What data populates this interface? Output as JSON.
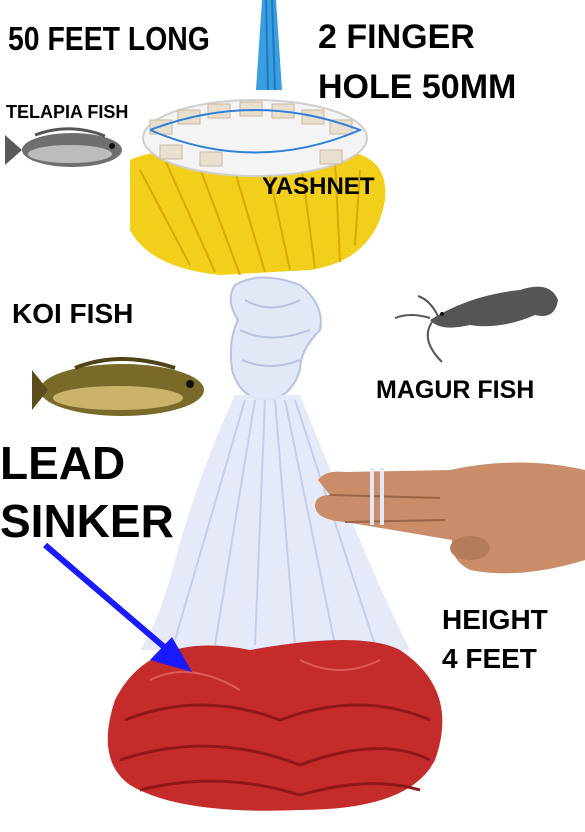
{
  "labels": {
    "length": "50 FEET LONG",
    "mesh_line1": "2 FINGER",
    "mesh_line2": "HOLE 50MM",
    "telapia": "TELAPIA FISH",
    "brand": "YASHNET",
    "koi": "KOI FISH",
    "magur": "MAGUR FISH",
    "lead_line1": "LEAD",
    "lead_line2": "SINKER",
    "height_line1": "HEIGHT",
    "height_line2": "4 FEET"
  },
  "colors": {
    "text": "#000000",
    "arrow": "#1a1aff",
    "top_rope": "#3a9fe0",
    "float_ring": "#f2f2f2",
    "yellow_net": "#f2cf1a",
    "white_net": "#e3e8f7",
    "lead_sinker_chain": "#c42b2b"
  },
  "icons": [
    "telapia-fish-image",
    "koi-fish-image",
    "magur-fish-image",
    "hand-image",
    "cast-net-image",
    "arrow-icon"
  ]
}
